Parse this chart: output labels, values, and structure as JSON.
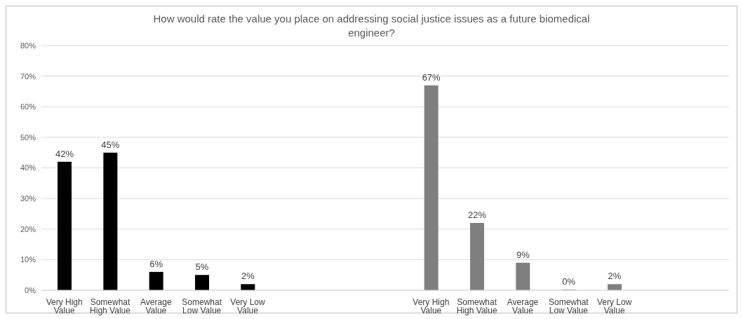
{
  "chart_data": {
    "type": "bar",
    "title": "How would rate the value you place on addressing social justice issues as a future biomedical engineer?",
    "categories": [
      "Very High Value",
      "Somewhat High Value",
      "Average Value",
      "Somewhat Low Value",
      "Very Low Value",
      null,
      null,
      null,
      "Very High Value",
      "Somewhat High Value",
      "Average Value",
      "Somewhat Low Value",
      "Very Low Value",
      null,
      null
    ],
    "values": [
      42,
      45,
      6,
      5,
      2,
      null,
      null,
      null,
      67,
      22,
      9,
      0,
      2,
      null,
      null
    ],
    "colors": [
      "#000000",
      "#000000",
      "#000000",
      "#000000",
      "#000000",
      null,
      null,
      null,
      "#7f7f7f",
      "#7f7f7f",
      "#7f7f7f",
      "#7f7f7f",
      "#7f7f7f",
      null,
      null
    ],
    "value_labels": [
      "42%",
      "45%",
      "6%",
      "5%",
      "2%",
      null,
      null,
      null,
      "67%",
      "22%",
      "9%",
      "0%",
      "2%",
      null,
      null
    ],
    "ylim": [
      0,
      80
    ],
    "yticks": [
      {
        "value": 0,
        "label": "0%"
      },
      {
        "value": 10,
        "label": "10%"
      },
      {
        "value": 20,
        "label": "20%"
      },
      {
        "value": 30,
        "label": "30%"
      },
      {
        "value": 40,
        "label": "40%"
      },
      {
        "value": 50,
        "label": "50%"
      },
      {
        "value": 60,
        "label": "60%"
      },
      {
        "value": 70,
        "label": "70%"
      },
      {
        "value": 80,
        "label": "80%"
      }
    ],
    "grid": "y",
    "legend": false
  }
}
